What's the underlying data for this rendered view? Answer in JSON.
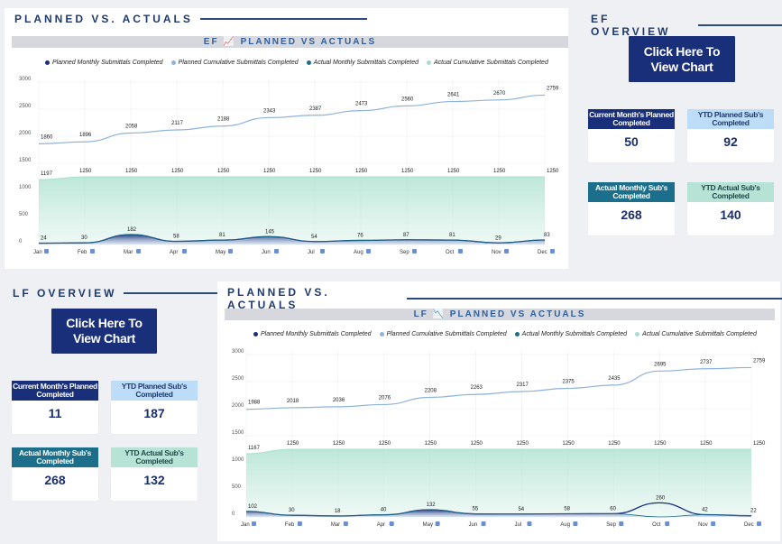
{
  "ef": {
    "pva_title": "PLANNED VS. ACTUALS",
    "overview_title": "EF OVERVIEW",
    "chart_header": "EF",
    "chart_header_rest": "PLANNED VS ACTUALS",
    "trend_icon": "chart-increasing",
    "button": {
      "line1": "Click Here To",
      "line2": "View Chart"
    },
    "kpis": [
      {
        "label": "Current Month's Planned Completed",
        "value": "50"
      },
      {
        "label": "YTD Planned Sub's Completed",
        "value": "92"
      },
      {
        "label": "Actual Monthly Sub's Completed",
        "value": "268"
      },
      {
        "label": "YTD Actual Sub's Completed",
        "value": "140"
      }
    ]
  },
  "lf": {
    "pva_title": "PLANNED VS. ACTUALS",
    "overview_title": "LF OVERVIEW",
    "chart_header": "LF",
    "chart_header_rest": "PLANNED VS ACTUALS",
    "trend_icon": "chart-decreasing",
    "button": {
      "line1": "Click Here To",
      "line2": "View Chart"
    },
    "kpis": [
      {
        "label": "Current Month's Planned Completed",
        "value": "11"
      },
      {
        "label": "YTD Planned Sub's Completed",
        "value": "187"
      },
      {
        "label": "Actual Monthly Sub's Completed",
        "value": "268"
      },
      {
        "label": "YTD Actual Sub's Completed",
        "value": "132"
      }
    ]
  },
  "legend": [
    {
      "label": "Planned Monthly Submittals Completed",
      "color": "#1a2f7a"
    },
    {
      "label": "Planned Cumulative Submittals Completed",
      "color": "#8fb3d9"
    },
    {
      "label": "Actual Monthly Submittals Completed",
      "color": "#1c6f8a"
    },
    {
      "label": "Actual Cumulative Submittals Completed",
      "color": "#a8dfcc"
    }
  ],
  "chart_data": [
    {
      "type": "line",
      "id": "ef",
      "title": "EF PLANNED VS ACTUALS",
      "categories": [
        "Jan",
        "Feb",
        "Mar",
        "Apr",
        "May",
        "Jun",
        "Jul",
        "Aug",
        "Sep",
        "Oct",
        "Nov",
        "Dec"
      ],
      "ylim": [
        0,
        3000
      ],
      "yticks": [
        0,
        500,
        1000,
        1500,
        2000,
        2500,
        3000
      ],
      "series": [
        {
          "name": "Planned Monthly Submittals Completed",
          "values": [
            24,
            30,
            182,
            58,
            81,
            145,
            54,
            76,
            87,
            81,
            29,
            83
          ]
        },
        {
          "name": "Planned Cumulative Submittals Completed",
          "values": [
            1860,
            1896,
            2058,
            2117,
            2188,
            2343,
            2387,
            2473,
            2560,
            2641,
            2670,
            2759
          ]
        },
        {
          "name": "Actual Monthly Submittals Completed",
          "values": [
            24,
            30,
            182,
            58,
            81,
            145,
            54,
            76,
            87,
            81,
            29,
            83
          ]
        },
        {
          "name": "Actual Cumulative Submittals Completed",
          "values": [
            1197,
            1250,
            1250,
            1250,
            1250,
            1250,
            1250,
            1250,
            1250,
            1250,
            1250,
            1250
          ]
        }
      ],
      "monthly_labels": [
        "24",
        "30",
        "182",
        "58",
        "81",
        "145",
        "54",
        "76",
        "87",
        "81",
        "29",
        "83"
      ],
      "cumulative_labels": [
        "1860",
        "1896",
        "2058",
        "2117",
        "2188",
        "2343",
        "2387",
        "2473",
        "2560",
        "2641",
        "2670",
        "2759"
      ],
      "actual_cumulative_labels": [
        "1197",
        "1250",
        "1250",
        "1250",
        "1250",
        "1250",
        "1250",
        "1250",
        "1250",
        "1250",
        "1250",
        "1250"
      ]
    },
    {
      "type": "line",
      "id": "lf",
      "title": "LF PLANNED VS ACTUALS",
      "categories": [
        "Jan",
        "Feb",
        "Mar",
        "Apr",
        "May",
        "Jun",
        "Jul",
        "Aug",
        "Sep",
        "Oct",
        "Nov",
        "Dec"
      ],
      "ylim": [
        0,
        3000
      ],
      "yticks": [
        0,
        500,
        1000,
        1500,
        2000,
        2500,
        3000
      ],
      "series": [
        {
          "name": "Planned Monthly Submittals Completed",
          "values": [
            102,
            30,
            18,
            40,
            132,
            55,
            54,
            58,
            60,
            260,
            42,
            22
          ]
        },
        {
          "name": "Planned Cumulative Submittals Completed",
          "values": [
            1988,
            2018,
            2036,
            2076,
            2208,
            2263,
            2317,
            2375,
            2435,
            2695,
            2737,
            2759
          ]
        },
        {
          "name": "Actual Monthly Submittals Completed",
          "values": [
            102,
            30,
            18,
            40,
            132,
            55,
            54,
            58,
            60,
            0,
            42,
            22
          ]
        },
        {
          "name": "Actual Cumulative Submittals Completed",
          "values": [
            1167,
            1250,
            1250,
            1250,
            1250,
            1250,
            1250,
            1250,
            1250,
            1250,
            1250,
            1250
          ]
        }
      ],
      "monthly_labels": [
        "102",
        "30",
        "18",
        "40",
        "132",
        "55",
        "54",
        "58",
        "60",
        "260",
        "42",
        "22"
      ],
      "monthly_label_extra": {
        "index": 9,
        "text": "0"
      },
      "cumulative_labels": [
        "1988",
        "2018",
        "2036",
        "2076",
        "2208",
        "2263",
        "2317",
        "2375",
        "2435",
        "2695",
        "2737",
        "2759"
      ],
      "actual_cumulative_labels": [
        "1167",
        "1250",
        "1250",
        "1250",
        "1250",
        "1250",
        "1250",
        "1250",
        "1250",
        "1250",
        "1250",
        "1250"
      ]
    }
  ]
}
